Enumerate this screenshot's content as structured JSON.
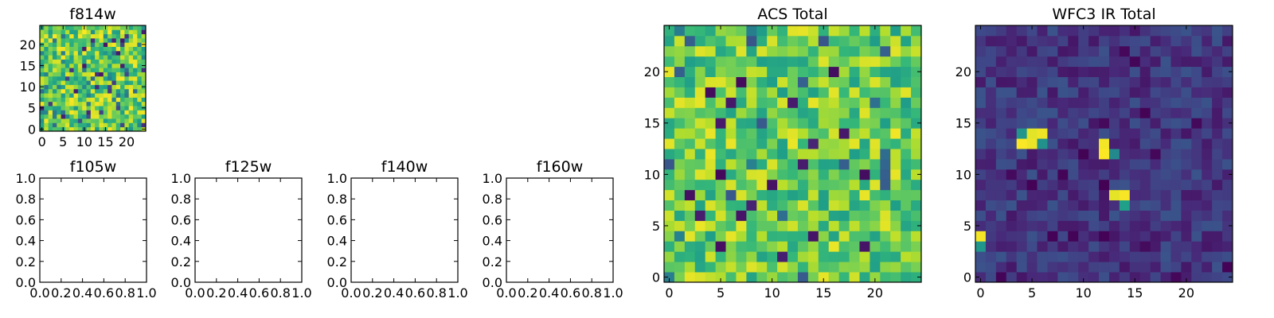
{
  "chart_data": [
    {
      "panel": "f814w",
      "type": "heatmap",
      "title": "f814w",
      "colormap": "viridis",
      "grid_size": 25,
      "xlim": [
        -0.5,
        24.5
      ],
      "ylim": [
        -0.5,
        24.5
      ],
      "xticks": [
        "0",
        "5",
        "10",
        "15",
        "20"
      ],
      "yticks": [
        "0",
        "5",
        "10",
        "15",
        "20"
      ],
      "value_summary": "dense speckled noise, mostly green to yellow (~0.6–0.9 of color scale) with sparse dark pixels",
      "grid": false
    },
    {
      "panel": "f105w",
      "type": "heatmap",
      "title": "f105w",
      "empty": true,
      "xlim": [
        0.0,
        1.0
      ],
      "ylim": [
        0.0,
        1.0
      ],
      "xticks": [
        "0.0",
        "0.2",
        "0.4",
        "0.6",
        "0.8",
        "1.0"
      ],
      "yticks": [
        "0.0",
        "0.2",
        "0.4",
        "0.6",
        "0.8",
        "1.0"
      ]
    },
    {
      "panel": "f125w",
      "type": "heatmap",
      "title": "f125w",
      "empty": true,
      "xlim": [
        0.0,
        1.0
      ],
      "ylim": [
        0.0,
        1.0
      ],
      "xticks": [
        "0.0",
        "0.2",
        "0.4",
        "0.6",
        "0.8",
        "1.0"
      ],
      "yticks": [
        "0.0",
        "0.2",
        "0.4",
        "0.6",
        "0.8",
        "1.0"
      ]
    },
    {
      "panel": "f140w",
      "type": "heatmap",
      "title": "f140w",
      "empty": true,
      "xlim": [
        0.0,
        1.0
      ],
      "ylim": [
        0.0,
        1.0
      ],
      "xticks": [
        "0.0",
        "0.2",
        "0.4",
        "0.6",
        "0.8",
        "1.0"
      ],
      "yticks": [
        "0.0",
        "0.2",
        "0.4",
        "0.6",
        "0.8",
        "1.0"
      ]
    },
    {
      "panel": "f160w",
      "type": "heatmap",
      "title": "f160w",
      "empty": true,
      "xlim": [
        0.0,
        1.0
      ],
      "ylim": [
        0.0,
        1.0
      ],
      "xticks": [
        "0.0",
        "0.2",
        "0.4",
        "0.6",
        "0.8",
        "1.0"
      ],
      "yticks": [
        "0.0",
        "0.2",
        "0.4",
        "0.6",
        "0.8",
        "1.0"
      ]
    },
    {
      "panel": "acs_total",
      "type": "heatmap",
      "title": "ACS Total",
      "colormap": "viridis",
      "grid_size": 25,
      "xlim": [
        -0.5,
        24.5
      ],
      "ylim": [
        -0.5,
        24.5
      ],
      "xticks": [
        "0",
        "5",
        "10",
        "15",
        "20"
      ],
      "yticks": [
        "0",
        "5",
        "10",
        "15",
        "20"
      ],
      "dark_pixels": [
        [
          7,
          19
        ],
        [
          4,
          18
        ],
        [
          12,
          17
        ],
        [
          5,
          15
        ],
        [
          14,
          13
        ],
        [
          13,
          11
        ],
        [
          5,
          10
        ],
        [
          19,
          10
        ],
        [
          10,
          9
        ],
        [
          2,
          8
        ],
        [
          8,
          7
        ],
        [
          7,
          6
        ],
        [
          3,
          6
        ],
        [
          5,
          3
        ],
        [
          14,
          4
        ],
        [
          19,
          3
        ],
        [
          11,
          2
        ],
        [
          6,
          17
        ],
        [
          16,
          20
        ],
        [
          17,
          14
        ]
      ],
      "bright_pixels": [
        [
          13,
          24
        ],
        [
          3,
          13
        ],
        [
          18,
          13
        ],
        [
          20,
          12
        ],
        [
          22,
          14
        ],
        [
          4,
          12
        ],
        [
          17,
          4
        ],
        [
          16,
          7
        ],
        [
          5,
          10
        ],
        [
          9,
          22
        ]
      ],
      "grid": false
    },
    {
      "panel": "wfc3_ir_total",
      "type": "heatmap",
      "title": "WFC3 IR Total",
      "colormap": "viridis",
      "grid_size": 25,
      "xlim": [
        -0.5,
        24.5
      ],
      "ylim": [
        -0.5,
        24.5
      ],
      "xticks": [
        "0",
        "5",
        "10",
        "15",
        "20"
      ],
      "yticks": [
        "0",
        "5",
        "10",
        "15",
        "20"
      ],
      "hot_pixels": [
        [
          4,
          13
        ],
        [
          5,
          13
        ],
        [
          5,
          14
        ],
        [
          6,
          14
        ],
        [
          12,
          13
        ],
        [
          12,
          12
        ],
        [
          13,
          8
        ],
        [
          14,
          8
        ],
        [
          0,
          4
        ]
      ],
      "warm_pixels": [
        [
          4,
          14
        ],
        [
          13,
          12
        ],
        [
          14,
          7
        ],
        [
          0,
          3
        ],
        [
          6,
          13
        ]
      ],
      "dark_pixels": [
        [
          14,
          22
        ],
        [
          15,
          21
        ],
        [
          12,
          15
        ],
        [
          16,
          16
        ],
        [
          21,
          15
        ],
        [
          17,
          12
        ],
        [
          10,
          12
        ],
        [
          3,
          10
        ],
        [
          8,
          10
        ],
        [
          5,
          9
        ],
        [
          12,
          9
        ],
        [
          7,
          4
        ],
        [
          9,
          4
        ],
        [
          12,
          4
        ],
        [
          16,
          3
        ],
        [
          19,
          0
        ],
        [
          24,
          1
        ],
        [
          2,
          0
        ]
      ],
      "grid": false
    }
  ]
}
